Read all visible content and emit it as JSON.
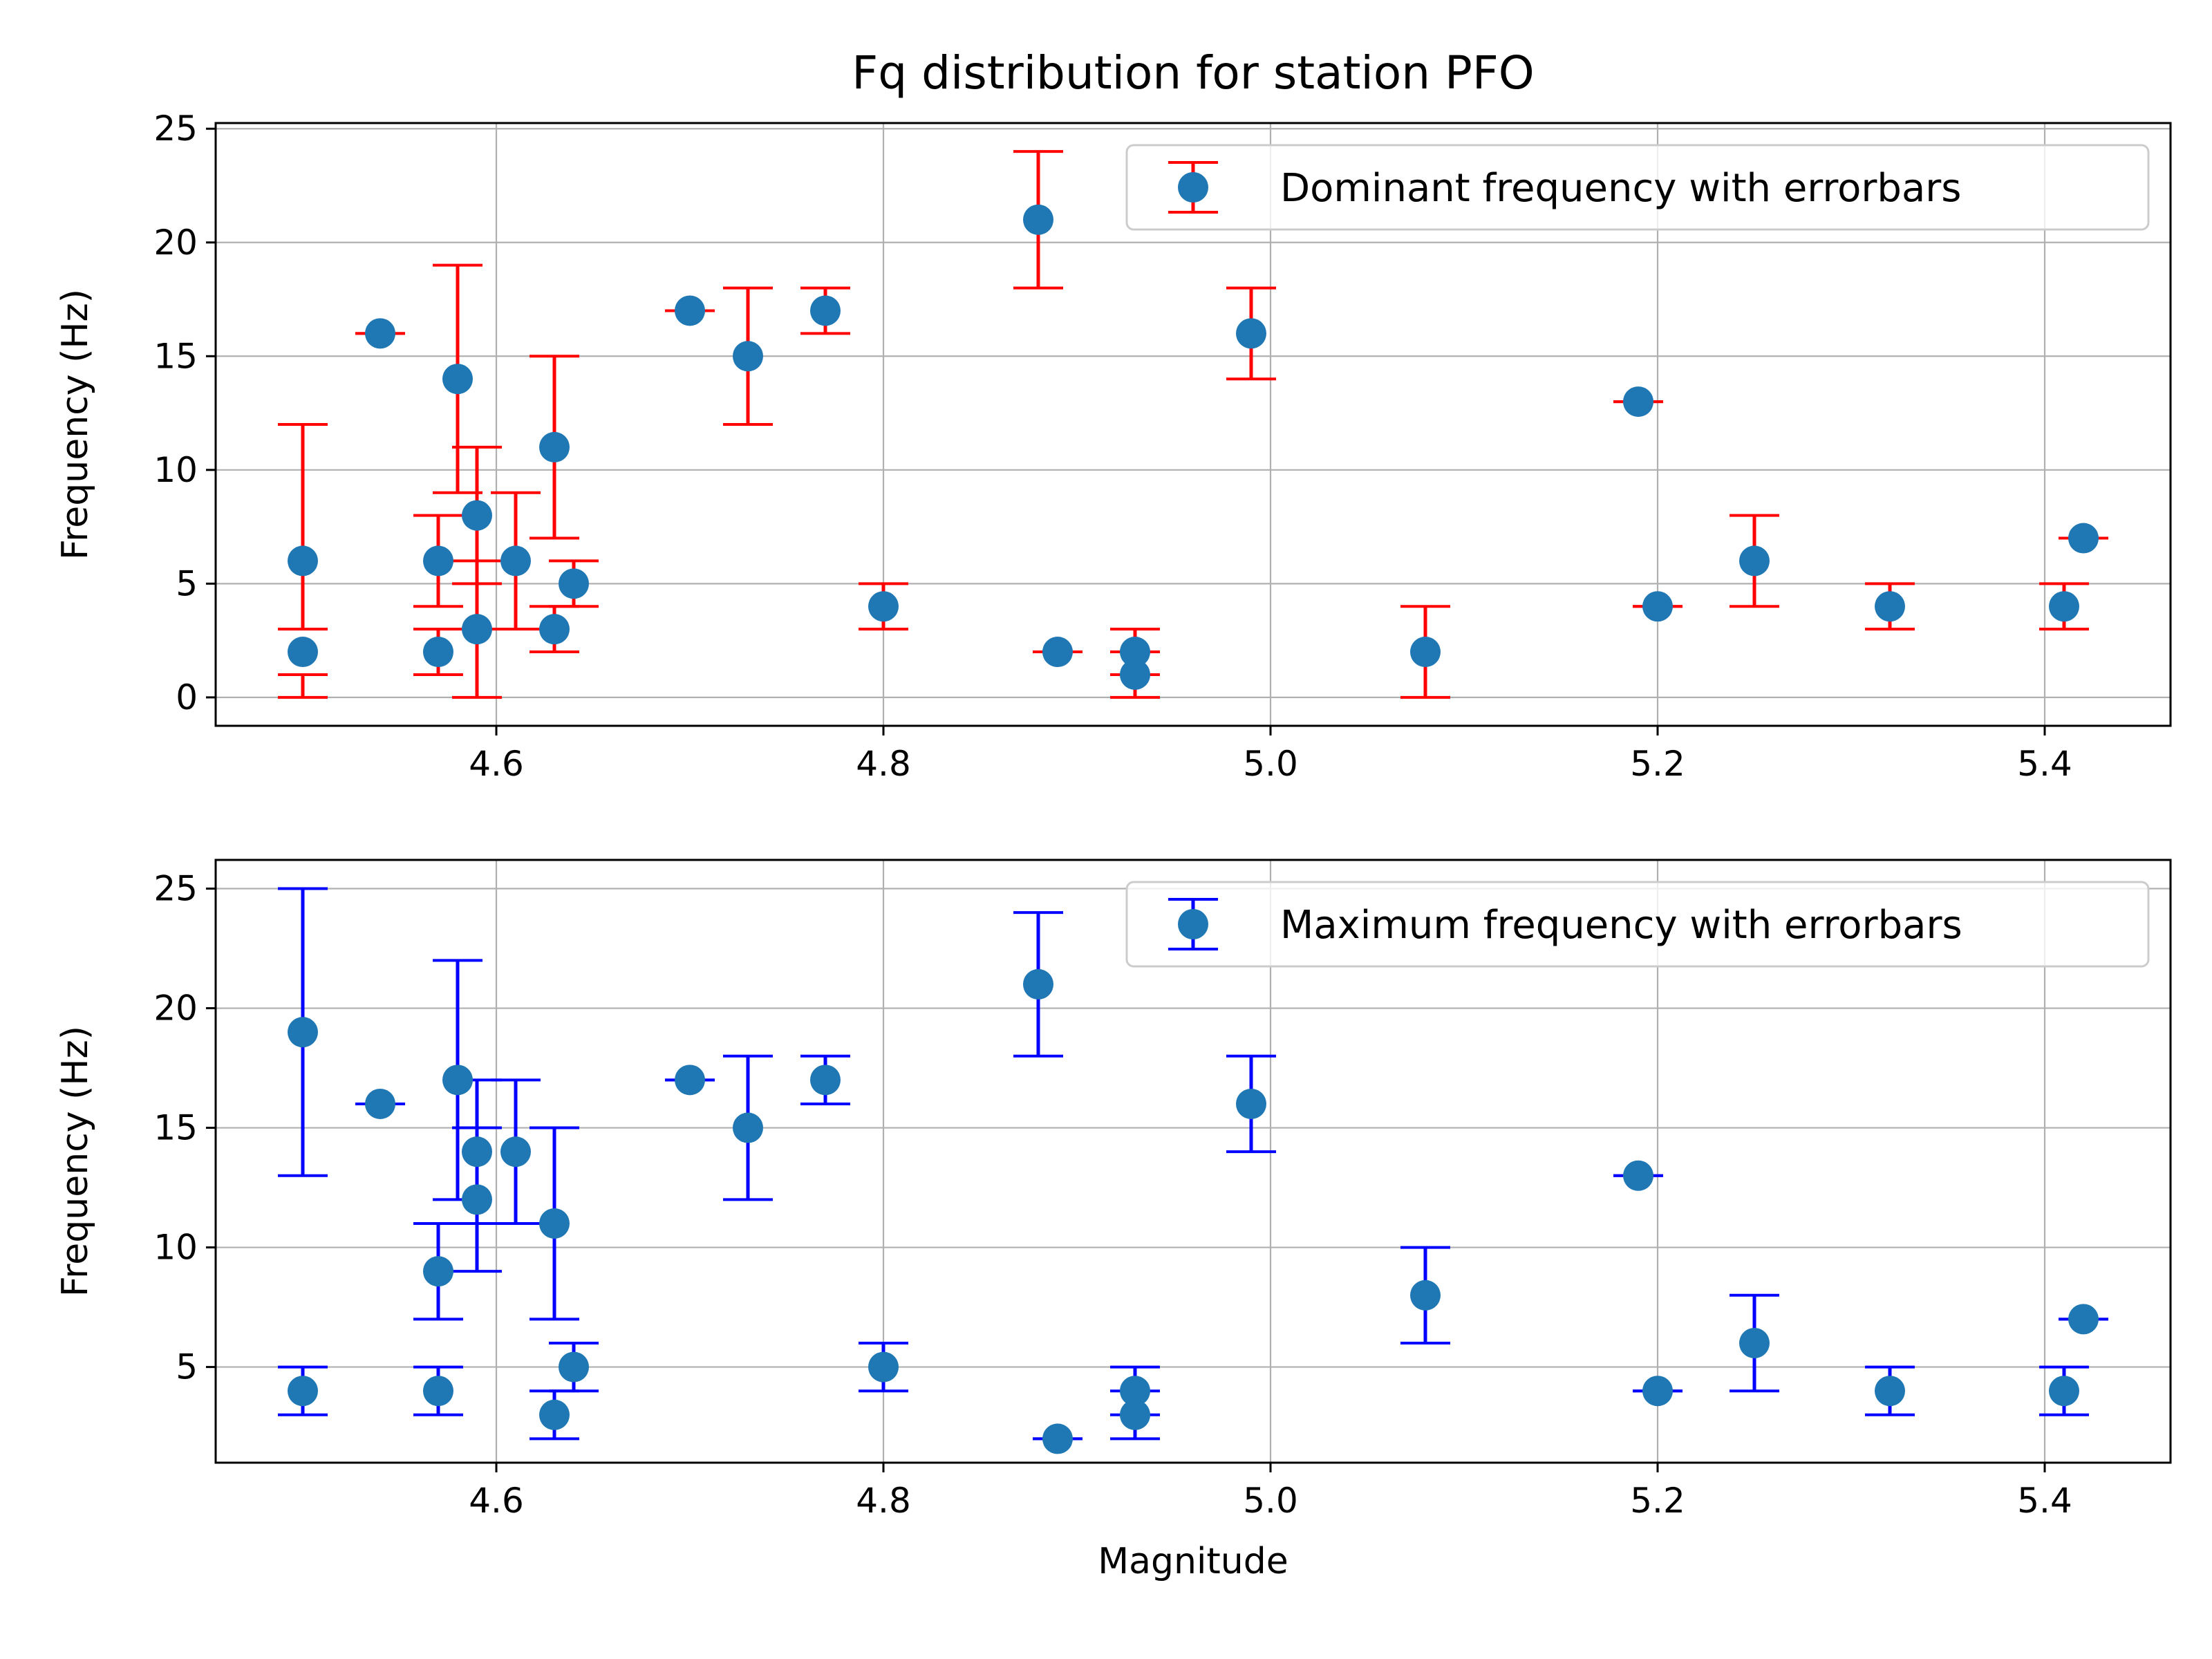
{
  "title": "Fq distribution for station PFO",
  "chart_data": [
    {
      "type": "scatter",
      "xlabel": "",
      "ylabel": "Frequency (Hz)",
      "xlim": [
        4.455,
        5.465
      ],
      "ylim": [
        -1.25,
        25.25
      ],
      "xticks": [
        4.6,
        4.8,
        5.0,
        5.2,
        5.4
      ],
      "xtick_labels": [
        "4.6",
        "4.8",
        "5.0",
        "5.2",
        "5.4"
      ],
      "yticks": [
        0,
        5,
        10,
        15,
        20,
        25
      ],
      "ytick_labels": [
        "0",
        "5",
        "10",
        "15",
        "20",
        "25"
      ],
      "grid": true,
      "legend_position": "top-right",
      "marker_color": "#1f77b4",
      "errorbar_color": "#ff0000",
      "series": [
        {
          "name": "Dominant frequency with errorbars",
          "points": [
            {
              "x": 4.5,
              "y": 6,
              "lo": 3,
              "hi": 12
            },
            {
              "x": 4.5,
              "y": 2,
              "lo": 0,
              "hi": 1
            },
            {
              "x": 4.54,
              "y": 16,
              "lo": 16,
              "hi": 16
            },
            {
              "x": 4.57,
              "y": 6,
              "lo": 4,
              "hi": 8
            },
            {
              "x": 4.57,
              "y": 2,
              "lo": 1,
              "hi": 3
            },
            {
              "x": 4.58,
              "y": 14,
              "lo": 9,
              "hi": 19
            },
            {
              "x": 4.59,
              "y": 8,
              "lo": 5,
              "hi": 11
            },
            {
              "x": 4.59,
              "y": 3,
              "lo": 0,
              "hi": 6
            },
            {
              "x": 4.61,
              "y": 6,
              "lo": 3,
              "hi": 9
            },
            {
              "x": 4.63,
              "y": 11,
              "lo": 7,
              "hi": 15
            },
            {
              "x": 4.63,
              "y": 3,
              "lo": 2,
              "hi": 4
            },
            {
              "x": 4.64,
              "y": 5,
              "lo": 4,
              "hi": 6
            },
            {
              "x": 4.7,
              "y": 17,
              "lo": 17,
              "hi": 17
            },
            {
              "x": 4.73,
              "y": 15,
              "lo": 12,
              "hi": 18
            },
            {
              "x": 4.77,
              "y": 17,
              "lo": 16,
              "hi": 18
            },
            {
              "x": 4.8,
              "y": 4,
              "lo": 3,
              "hi": 5
            },
            {
              "x": 4.88,
              "y": 21,
              "lo": 18,
              "hi": 24
            },
            {
              "x": 4.89,
              "y": 2,
              "lo": 2,
              "hi": 2
            },
            {
              "x": 4.93,
              "y": 2,
              "lo": 1,
              "hi": 3
            },
            {
              "x": 4.93,
              "y": 1,
              "lo": 0,
              "hi": 2
            },
            {
              "x": 4.99,
              "y": 16,
              "lo": 14,
              "hi": 18
            },
            {
              "x": 5.08,
              "y": 2,
              "lo": 0,
              "hi": 4
            },
            {
              "x": 5.19,
              "y": 13,
              "lo": 13,
              "hi": 13
            },
            {
              "x": 5.2,
              "y": 4,
              "lo": 4,
              "hi": 4
            },
            {
              "x": 5.25,
              "y": 6,
              "lo": 4,
              "hi": 8
            },
            {
              "x": 5.32,
              "y": 4,
              "lo": 3,
              "hi": 5
            },
            {
              "x": 5.41,
              "y": 4,
              "lo": 3,
              "hi": 5
            },
            {
              "x": 5.42,
              "y": 7,
              "lo": 7,
              "hi": 7
            }
          ]
        }
      ]
    },
    {
      "type": "scatter",
      "xlabel": "Magnitude",
      "ylabel": "Frequency (Hz)",
      "xlim": [
        4.455,
        5.465
      ],
      "ylim": [
        1.0,
        26.2
      ],
      "xticks": [
        4.6,
        4.8,
        5.0,
        5.2,
        5.4
      ],
      "xtick_labels": [
        "4.6",
        "4.8",
        "5.0",
        "5.2",
        "5.4"
      ],
      "yticks": [
        5,
        10,
        15,
        20,
        25
      ],
      "ytick_labels": [
        "5",
        "10",
        "15",
        "20",
        "25"
      ],
      "grid": true,
      "legend_position": "top-right",
      "marker_color": "#1f77b4",
      "errorbar_color": "#0000ff",
      "series": [
        {
          "name": "Maximum frequency with errorbars",
          "points": [
            {
              "x": 4.5,
              "y": 19,
              "lo": 13,
              "hi": 25
            },
            {
              "x": 4.5,
              "y": 4,
              "lo": 3,
              "hi": 5
            },
            {
              "x": 4.54,
              "y": 16,
              "lo": 16,
              "hi": 16
            },
            {
              "x": 4.57,
              "y": 9,
              "lo": 7,
              "hi": 11
            },
            {
              "x": 4.57,
              "y": 4,
              "lo": 3,
              "hi": 5
            },
            {
              "x": 4.58,
              "y": 17,
              "lo": 12,
              "hi": 22
            },
            {
              "x": 4.59,
              "y": 14,
              "lo": 11,
              "hi": 17
            },
            {
              "x": 4.59,
              "y": 12,
              "lo": 9,
              "hi": 15
            },
            {
              "x": 4.61,
              "y": 14,
              "lo": 11,
              "hi": 17
            },
            {
              "x": 4.63,
              "y": 11,
              "lo": 7,
              "hi": 15
            },
            {
              "x": 4.63,
              "y": 3,
              "lo": 2,
              "hi": 4
            },
            {
              "x": 4.64,
              "y": 5,
              "lo": 4,
              "hi": 6
            },
            {
              "x": 4.7,
              "y": 17,
              "lo": 17,
              "hi": 17
            },
            {
              "x": 4.73,
              "y": 15,
              "lo": 12,
              "hi": 18
            },
            {
              "x": 4.77,
              "y": 17,
              "lo": 16,
              "hi": 18
            },
            {
              "x": 4.8,
              "y": 5,
              "lo": 4,
              "hi": 6
            },
            {
              "x": 4.88,
              "y": 21,
              "lo": 18,
              "hi": 24
            },
            {
              "x": 4.89,
              "y": 2,
              "lo": 2,
              "hi": 2
            },
            {
              "x": 4.93,
              "y": 4,
              "lo": 3,
              "hi": 5
            },
            {
              "x": 4.93,
              "y": 3,
              "lo": 2,
              "hi": 4
            },
            {
              "x": 4.99,
              "y": 16,
              "lo": 14,
              "hi": 18
            },
            {
              "x": 5.08,
              "y": 8,
              "lo": 6,
              "hi": 10
            },
            {
              "x": 5.19,
              "y": 13,
              "lo": 13,
              "hi": 13
            },
            {
              "x": 5.2,
              "y": 4,
              "lo": 4,
              "hi": 4
            },
            {
              "x": 5.25,
              "y": 6,
              "lo": 4,
              "hi": 8
            },
            {
              "x": 5.32,
              "y": 4,
              "lo": 3,
              "hi": 5
            },
            {
              "x": 5.41,
              "y": 4,
              "lo": 3,
              "hi": 5
            },
            {
              "x": 5.42,
              "y": 7,
              "lo": 7,
              "hi": 7
            }
          ]
        }
      ]
    }
  ]
}
